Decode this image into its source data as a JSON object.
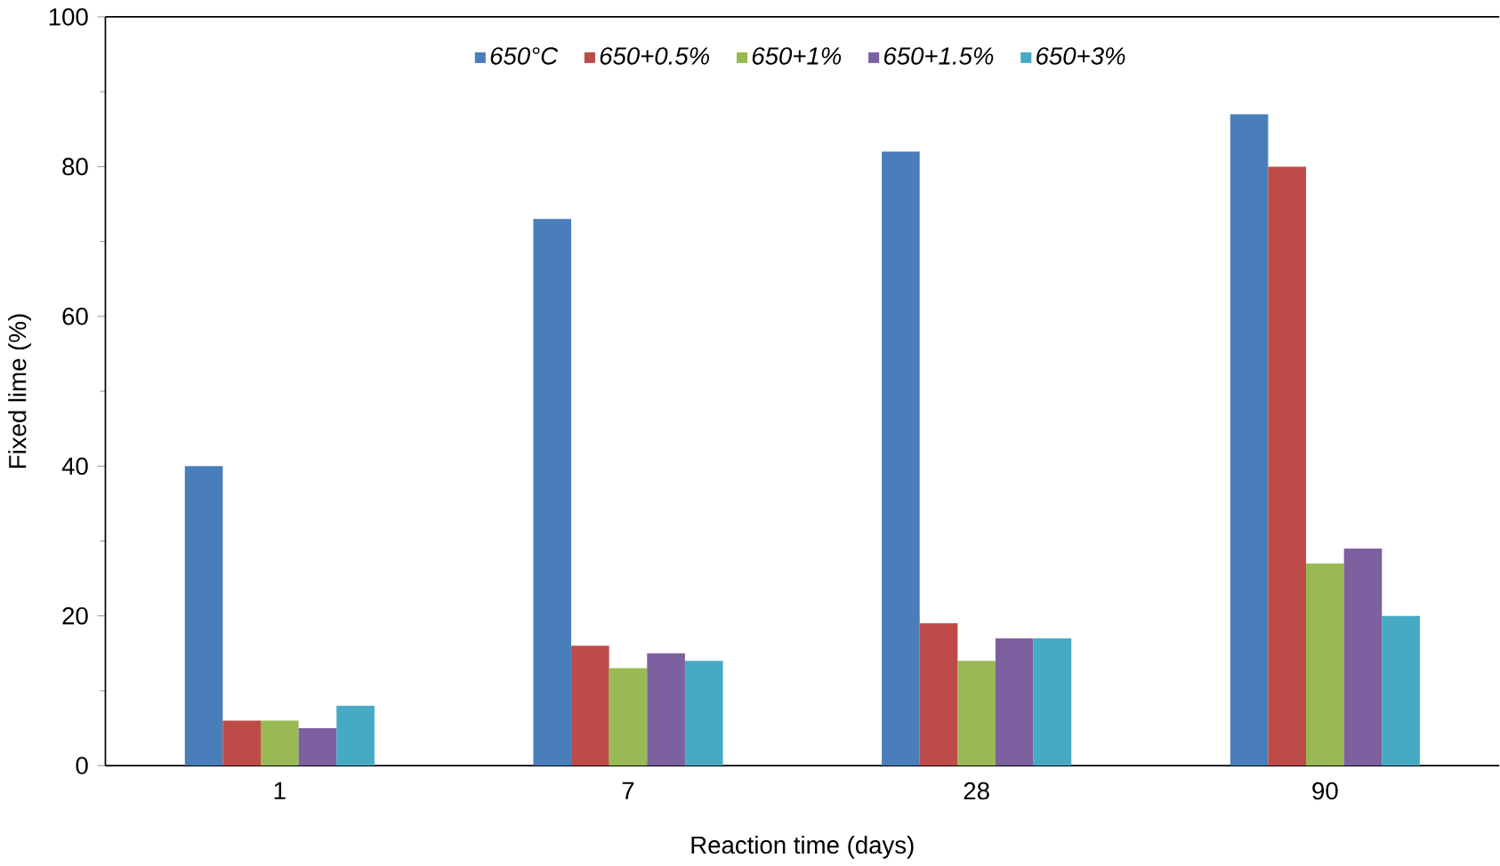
{
  "chart_data": {
    "type": "bar",
    "xlabel": "Reaction time (days)",
    "ylabel": "Fixed lime (%)",
    "categories": [
      "1",
      "7",
      "28",
      "90"
    ],
    "series": [
      {
        "name": "650°C",
        "color": "#4a7ebb",
        "values": [
          40,
          73,
          82,
          87
        ]
      },
      {
        "name": "650+0.5%",
        "color": "#be4b48",
        "values": [
          6,
          16,
          19,
          80
        ]
      },
      {
        "name": "650+1%",
        "color": "#98b954",
        "values": [
          6,
          13,
          14,
          27
        ]
      },
      {
        "name": "650+1.5%",
        "color": "#7d60a0",
        "values": [
          5,
          15,
          17,
          29
        ]
      },
      {
        "name": "650+3%",
        "color": "#46aac5",
        "values": [
          8,
          14,
          17,
          20
        ]
      }
    ],
    "ylim": [
      0,
      100
    ],
    "yticks": [
      0,
      20,
      40,
      60,
      80,
      100
    ],
    "legend": "top",
    "grid": false
  }
}
